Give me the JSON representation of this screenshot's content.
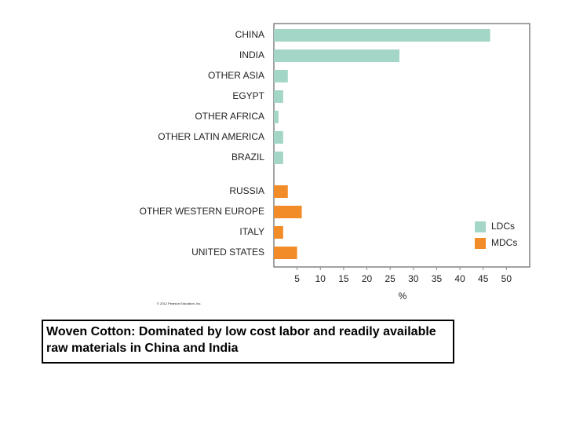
{
  "chart_data": {
    "type": "bar",
    "orientation": "horizontal",
    "categories": [
      "CHINA",
      "INDIA",
      "OTHER ASIA",
      "EGYPT",
      "OTHER AFRICA",
      "OTHER LATIN AMERICA",
      "BRAZIL",
      "RUSSIA",
      "OTHER WESTERN EUROPE",
      "ITALY",
      "UNITED STATES"
    ],
    "series": [
      {
        "name": "LDCs",
        "color": "#a3d6c6",
        "values": [
          46.5,
          27,
          3,
          2,
          1,
          2,
          2,
          null,
          null,
          null,
          null
        ]
      },
      {
        "name": "MDCs",
        "color": "#f28c28",
        "values": [
          null,
          null,
          null,
          null,
          null,
          null,
          null,
          3,
          6,
          2,
          5
        ]
      }
    ],
    "xlabel": "%",
    "xlim": [
      0,
      55
    ],
    "xticks": [
      5,
      10,
      15,
      20,
      25,
      30,
      35,
      40,
      45,
      50
    ],
    "legend": "lower right",
    "credit": "© 2012 Pearson Education, Inc."
  },
  "caption": "Woven Cotton: Dominated by low cost labor and readily available raw materials in China and India"
}
